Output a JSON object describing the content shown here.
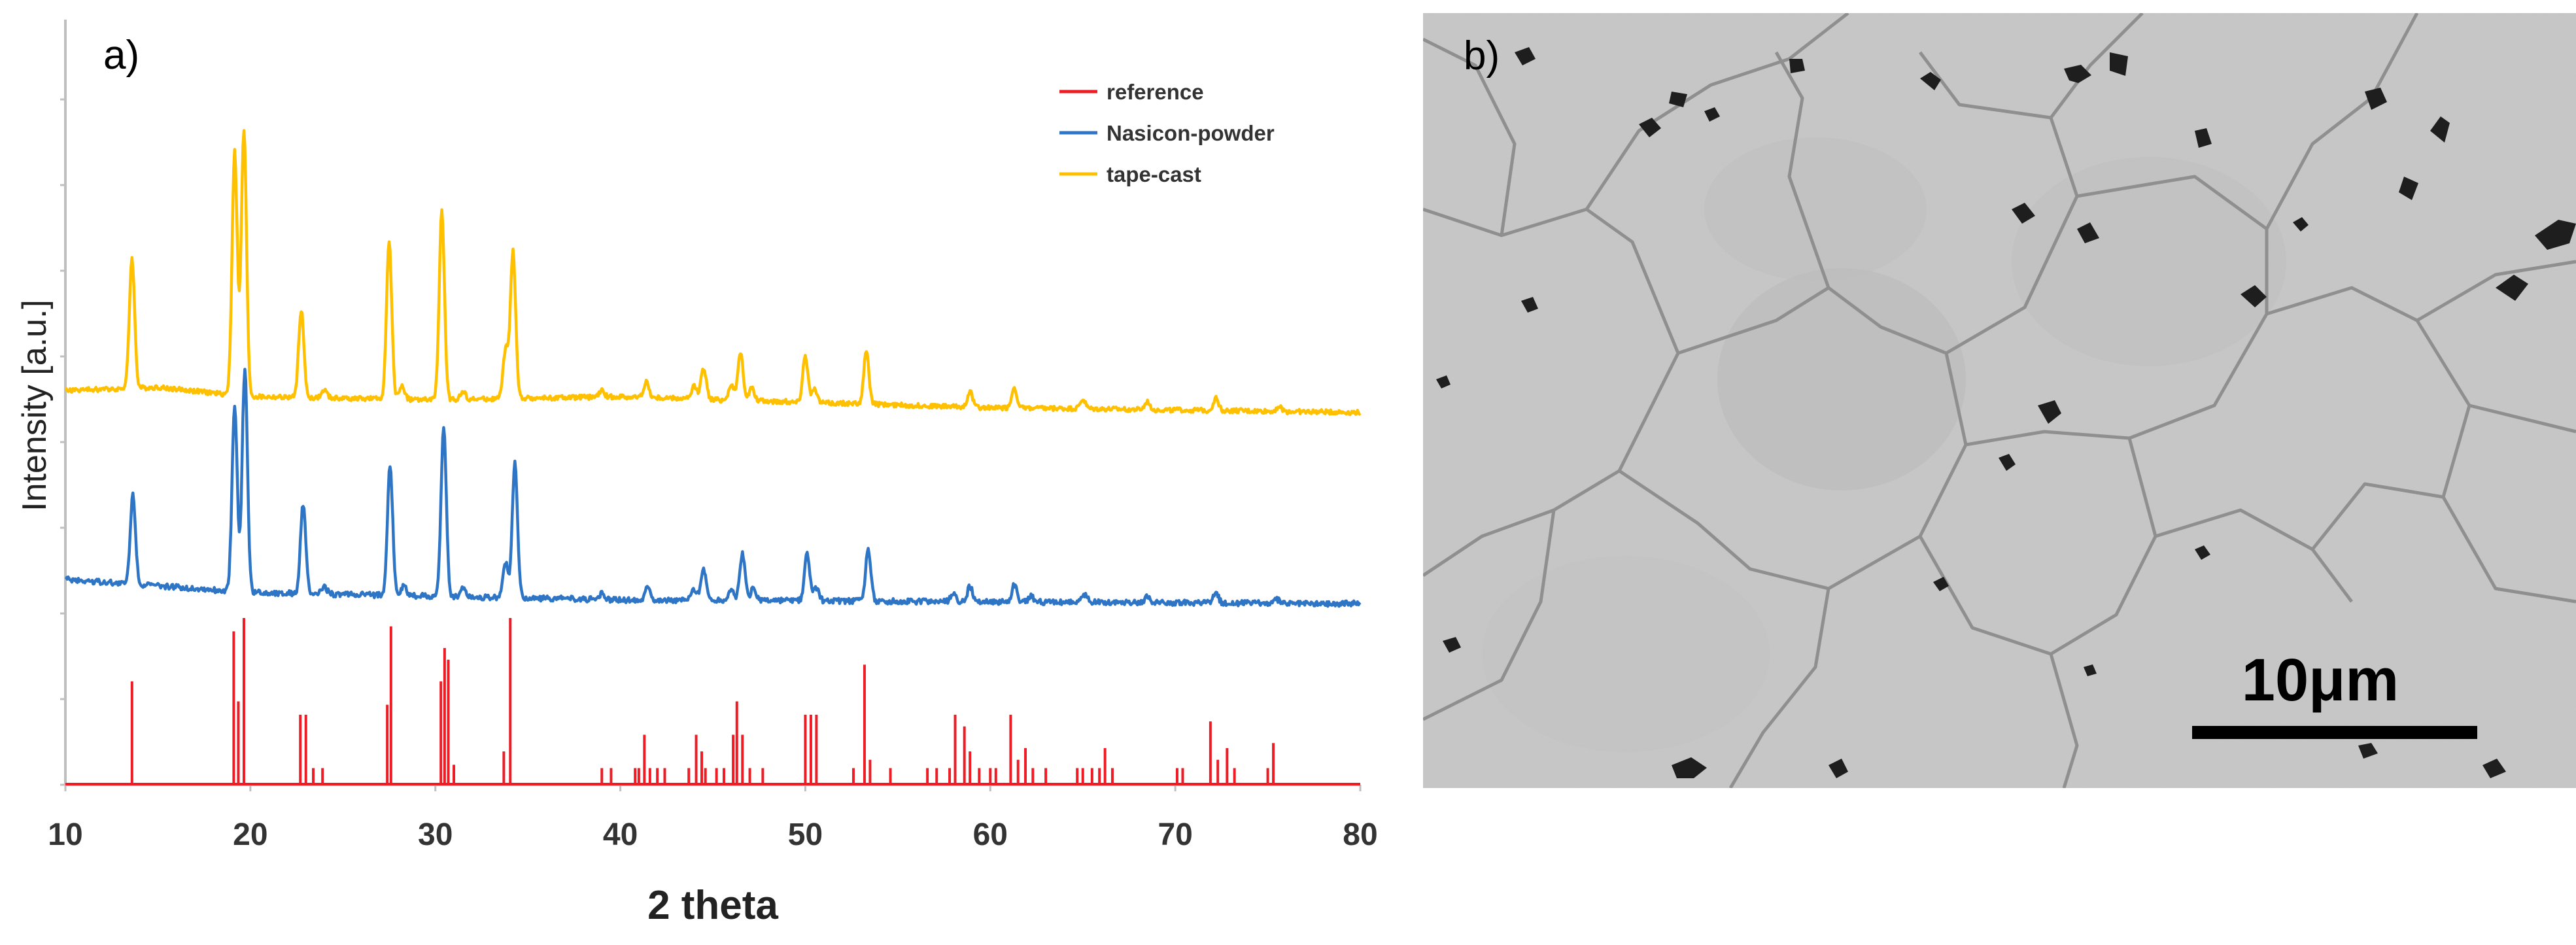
{
  "panel_a": {
    "label": "a)",
    "chart_data": {
      "type": "line",
      "title": "",
      "xlabel": "2 theta",
      "ylabel": "Intensity [a.u.]",
      "xlim": [
        10,
        80
      ],
      "xticks": [
        10,
        20,
        30,
        40,
        50,
        60,
        70,
        80
      ],
      "legend_position": "top-right",
      "series": [
        {
          "name": "reference",
          "color": "#ee1c24",
          "style": "stick",
          "peaks": [
            {
              "x": 13.6,
              "h": 0.62
            },
            {
              "x": 19.1,
              "h": 0.92
            },
            {
              "x": 19.35,
              "h": 0.5
            },
            {
              "x": 19.65,
              "h": 1.0
            },
            {
              "x": 22.7,
              "h": 0.42
            },
            {
              "x": 23.0,
              "h": 0.42
            },
            {
              "x": 23.4,
              "h": 0.1
            },
            {
              "x": 23.9,
              "h": 0.1
            },
            {
              "x": 27.4,
              "h": 0.48
            },
            {
              "x": 27.6,
              "h": 0.95
            },
            {
              "x": 30.3,
              "h": 0.62
            },
            {
              "x": 30.5,
              "h": 0.82
            },
            {
              "x": 30.7,
              "h": 0.75
            },
            {
              "x": 31.0,
              "h": 0.12
            },
            {
              "x": 33.7,
              "h": 0.2
            },
            {
              "x": 34.05,
              "h": 1.0
            },
            {
              "x": 39.0,
              "h": 0.1
            },
            {
              "x": 39.5,
              "h": 0.1
            },
            {
              "x": 40.8,
              "h": 0.1
            },
            {
              "x": 41.0,
              "h": 0.1
            },
            {
              "x": 41.3,
              "h": 0.3
            },
            {
              "x": 41.6,
              "h": 0.1
            },
            {
              "x": 42.0,
              "h": 0.1
            },
            {
              "x": 42.4,
              "h": 0.1
            },
            {
              "x": 43.7,
              "h": 0.1
            },
            {
              "x": 44.1,
              "h": 0.3
            },
            {
              "x": 44.4,
              "h": 0.2
            },
            {
              "x": 44.6,
              "h": 0.1
            },
            {
              "x": 45.2,
              "h": 0.1
            },
            {
              "x": 45.6,
              "h": 0.1
            },
            {
              "x": 46.1,
              "h": 0.3
            },
            {
              "x": 46.3,
              "h": 0.5
            },
            {
              "x": 46.6,
              "h": 0.3
            },
            {
              "x": 47.0,
              "h": 0.1
            },
            {
              "x": 47.7,
              "h": 0.1
            },
            {
              "x": 50.0,
              "h": 0.42
            },
            {
              "x": 50.3,
              "h": 0.42
            },
            {
              "x": 50.6,
              "h": 0.42
            },
            {
              "x": 52.6,
              "h": 0.1
            },
            {
              "x": 53.2,
              "h": 0.72
            },
            {
              "x": 53.5,
              "h": 0.15
            },
            {
              "x": 54.6,
              "h": 0.1
            },
            {
              "x": 56.6,
              "h": 0.1
            },
            {
              "x": 57.1,
              "h": 0.1
            },
            {
              "x": 57.8,
              "h": 0.1
            },
            {
              "x": 58.1,
              "h": 0.42
            },
            {
              "x": 58.6,
              "h": 0.35
            },
            {
              "x": 58.9,
              "h": 0.2
            },
            {
              "x": 59.4,
              "h": 0.1
            },
            {
              "x": 60.0,
              "h": 0.1
            },
            {
              "x": 60.3,
              "h": 0.1
            },
            {
              "x": 61.1,
              "h": 0.42
            },
            {
              "x": 61.5,
              "h": 0.15
            },
            {
              "x": 61.9,
              "h": 0.22
            },
            {
              "x": 62.3,
              "h": 0.1
            },
            {
              "x": 63.0,
              "h": 0.1
            },
            {
              "x": 64.7,
              "h": 0.1
            },
            {
              "x": 65.0,
              "h": 0.1
            },
            {
              "x": 65.5,
              "h": 0.1
            },
            {
              "x": 65.9,
              "h": 0.1
            },
            {
              "x": 66.2,
              "h": 0.22
            },
            {
              "x": 66.6,
              "h": 0.1
            },
            {
              "x": 70.1,
              "h": 0.1
            },
            {
              "x": 70.4,
              "h": 0.1
            },
            {
              "x": 71.9,
              "h": 0.38
            },
            {
              "x": 72.3,
              "h": 0.15
            },
            {
              "x": 72.8,
              "h": 0.22
            },
            {
              "x": 73.2,
              "h": 0.1
            },
            {
              "x": 75.0,
              "h": 0.1
            },
            {
              "x": 75.3,
              "h": 0.25
            }
          ]
        },
        {
          "name": "Nasicon-powder",
          "color": "#2e75c6",
          "style": "pattern",
          "baseline": [
            [
              10,
              0.0
            ],
            [
              20,
              -0.07
            ],
            [
              40,
              -0.11
            ],
            [
              60,
              -0.12
            ],
            [
              80,
              -0.13
            ]
          ],
          "peaks": [
            {
              "x": 13.65,
              "h": 0.48
            },
            {
              "x": 19.15,
              "h": 0.99
            },
            {
              "x": 19.7,
              "h": 1.2
            },
            {
              "x": 22.85,
              "h": 0.48
            },
            {
              "x": 24.0,
              "h": 0.04
            },
            {
              "x": 27.55,
              "h": 0.7
            },
            {
              "x": 28.3,
              "h": 0.05
            },
            {
              "x": 30.45,
              "h": 0.91
            },
            {
              "x": 31.5,
              "h": 0.05
            },
            {
              "x": 33.8,
              "h": 0.19
            },
            {
              "x": 34.3,
              "h": 0.72
            },
            {
              "x": 39.0,
              "h": 0.03
            },
            {
              "x": 41.5,
              "h": 0.08
            },
            {
              "x": 44.0,
              "h": 0.06
            },
            {
              "x": 44.5,
              "h": 0.17
            },
            {
              "x": 46.0,
              "h": 0.06
            },
            {
              "x": 46.6,
              "h": 0.25
            },
            {
              "x": 47.2,
              "h": 0.07
            },
            {
              "x": 50.1,
              "h": 0.25
            },
            {
              "x": 50.6,
              "h": 0.07
            },
            {
              "x": 53.4,
              "h": 0.28
            },
            {
              "x": 58.0,
              "h": 0.04
            },
            {
              "x": 58.9,
              "h": 0.08
            },
            {
              "x": 61.3,
              "h": 0.09
            },
            {
              "x": 62.2,
              "h": 0.03
            },
            {
              "x": 65.1,
              "h": 0.04
            },
            {
              "x": 68.5,
              "h": 0.03
            },
            {
              "x": 72.2,
              "h": 0.05
            },
            {
              "x": 75.5,
              "h": 0.02
            }
          ]
        },
        {
          "name": "tape-cast",
          "color": "#ffc000",
          "style": "pattern",
          "baseline": [
            [
              10,
              0.0
            ],
            [
              15,
              0.02
            ],
            [
              20,
              -0.04
            ],
            [
              30,
              -0.06
            ],
            [
              40,
              -0.04
            ],
            [
              60,
              -0.11
            ],
            [
              80,
              -0.14
            ]
          ],
          "peaks": [
            {
              "x": 13.6,
              "h": 0.83
            },
            {
              "x": 19.15,
              "h": 1.55
            },
            {
              "x": 19.65,
              "h": 1.69
            },
            {
              "x": 22.75,
              "h": 0.56
            },
            {
              "x": 24.0,
              "h": 0.05
            },
            {
              "x": 27.5,
              "h": 1.0
            },
            {
              "x": 28.2,
              "h": 0.09
            },
            {
              "x": 30.35,
              "h": 1.2
            },
            {
              "x": 31.5,
              "h": 0.05
            },
            {
              "x": 33.8,
              "h": 0.31
            },
            {
              "x": 34.2,
              "h": 0.94
            },
            {
              "x": 39.0,
              "h": 0.04
            },
            {
              "x": 41.4,
              "h": 0.1
            },
            {
              "x": 44.0,
              "h": 0.08
            },
            {
              "x": 44.5,
              "h": 0.2
            },
            {
              "x": 46.0,
              "h": 0.1
            },
            {
              "x": 46.5,
              "h": 0.3
            },
            {
              "x": 47.1,
              "h": 0.08
            },
            {
              "x": 50.0,
              "h": 0.3
            },
            {
              "x": 50.5,
              "h": 0.08
            },
            {
              "x": 53.3,
              "h": 0.33
            },
            {
              "x": 58.9,
              "h": 0.1
            },
            {
              "x": 61.3,
              "h": 0.13
            },
            {
              "x": 65.0,
              "h": 0.06
            },
            {
              "x": 68.5,
              "h": 0.05
            },
            {
              "x": 72.2,
              "h": 0.08
            },
            {
              "x": 75.6,
              "h": 0.03
            }
          ]
        }
      ]
    }
  },
  "panel_b": {
    "label": "b)",
    "scale_bar": "10μm",
    "description_color": "#c9c9c9"
  }
}
